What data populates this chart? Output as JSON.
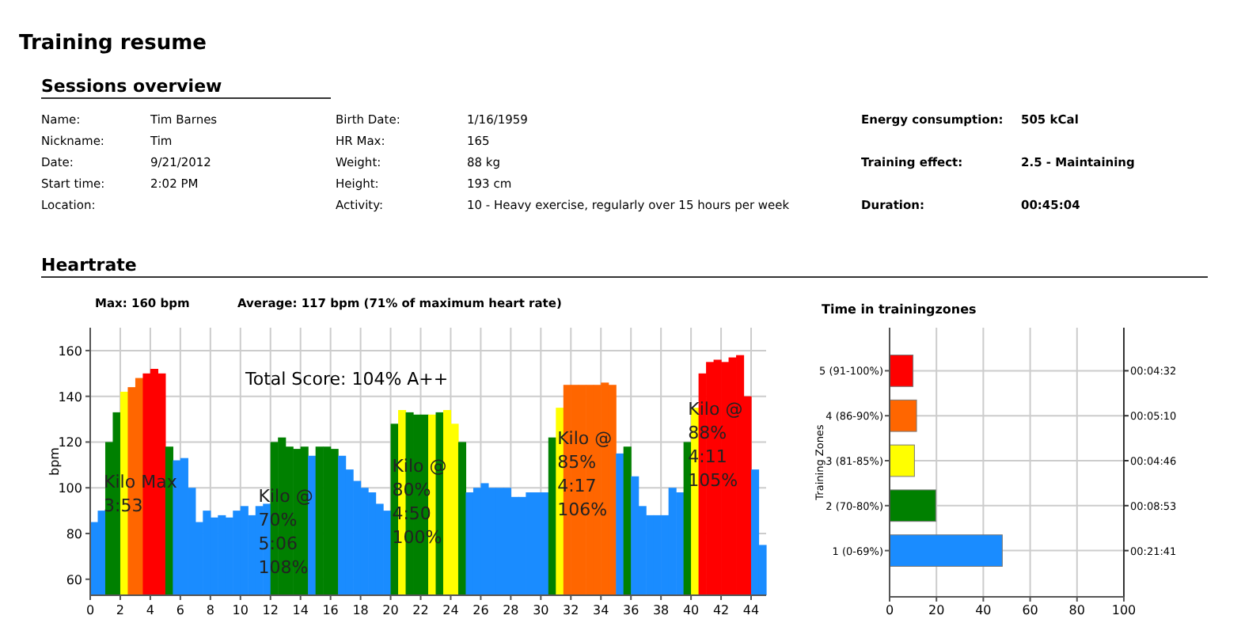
{
  "chart_data": [
    {
      "type": "other",
      "title": "Training resume",
      "subtitle": "Sessions overview",
      "annotations": [
        "Name:",
        "Tim Barnes",
        "Nickname:",
        "Tim",
        "Date:",
        "9/21/2012",
        "Start time:",
        "2:02 PM",
        "Location:",
        "Birth Date:",
        "1/16/1959",
        "HR Max:",
        "165",
        "Weight:",
        "88 kg",
        "Height:",
        "193 cm",
        "Activity:",
        "10 - Heavy exercise, regularly over 15 hours per week",
        "Energy consumption:",
        "505 kCal",
        "Training effect:",
        "2.5 - Maintaining",
        "Duration:",
        "00:45:04"
      ]
    },
    {
      "type": "bar",
      "title": "Heartrate",
      "ylabel": "bpm",
      "xlim": [
        0,
        45
      ],
      "ylim": [
        53,
        170
      ],
      "xticks": [
        0,
        2,
        4,
        6,
        8,
        10,
        12,
        14,
        16,
        18,
        20,
        22,
        24,
        26,
        28,
        30,
        32,
        34,
        36,
        38,
        40,
        42,
        44
      ],
      "yticks": [
        60,
        80,
        100,
        120,
        140,
        160
      ],
      "grid": true,
      "x": [
        0.25,
        0.75,
        1.25,
        1.75,
        2.25,
        2.75,
        3.25,
        3.75,
        4.25,
        4.75,
        5.25,
        5.75,
        6.25,
        6.75,
        7.25,
        7.75,
        8.25,
        8.75,
        9.25,
        9.75,
        10.25,
        10.75,
        11.25,
        11.75,
        12.25,
        12.75,
        13.25,
        13.75,
        14.25,
        14.75,
        15.25,
        15.75,
        16.25,
        16.75,
        17.25,
        17.75,
        18.25,
        18.75,
        19.25,
        19.75,
        20.25,
        20.75,
        21.25,
        21.75,
        22.25,
        22.75,
        23.25,
        23.75,
        24.25,
        24.75,
        25.25,
        25.75,
        26.25,
        26.75,
        27.25,
        27.75,
        28.25,
        28.75,
        29.25,
        29.75,
        30.25,
        30.75,
        31.25,
        31.75,
        32.25,
        32.75,
        33.25,
        33.75,
        34.25,
        34.75,
        35.25,
        35.75,
        36.25,
        36.75,
        37.25,
        37.75,
        38.25,
        38.75,
        39.25,
        39.75,
        40.25,
        40.75,
        41.25,
        41.75,
        42.25,
        42.75,
        43.25,
        43.75,
        44.25,
        44.75
      ],
      "values": [
        85,
        90,
        120,
        133,
        142,
        144,
        148,
        150,
        152,
        150,
        118,
        112,
        113,
        100,
        85,
        90,
        87,
        88,
        87,
        90,
        92,
        88,
        92,
        93,
        120,
        122,
        118,
        117,
        118,
        114,
        118,
        118,
        117,
        114,
        108,
        103,
        100,
        98,
        93,
        90,
        128,
        134,
        133,
        132,
        132,
        132,
        133,
        134,
        128,
        120,
        98,
        100,
        102,
        100,
        100,
        100,
        96,
        96,
        98,
        98,
        98,
        122,
        135,
        145,
        145,
        145,
        145,
        145,
        146,
        145,
        115,
        118,
        105,
        92,
        88,
        88,
        88,
        100,
        98,
        120,
        135,
        150,
        155,
        156,
        155,
        157,
        158,
        140,
        108,
        75
      ],
      "colors": [
        "#1a8cff",
        "#1a8cff",
        "#008000",
        "#008000",
        "#ffff00",
        "#ff6600",
        "#ff6600",
        "#ff0000",
        "#ff0000",
        "#ff0000",
        "#008000",
        "#1a8cff",
        "#1a8cff",
        "#1a8cff",
        "#1a8cff",
        "#1a8cff",
        "#1a8cff",
        "#1a8cff",
        "#1a8cff",
        "#1a8cff",
        "#1a8cff",
        "#1a8cff",
        "#1a8cff",
        "#1a8cff",
        "#008000",
        "#008000",
        "#008000",
        "#008000",
        "#008000",
        "#1a8cff",
        "#008000",
        "#008000",
        "#008000",
        "#1a8cff",
        "#1a8cff",
        "#1a8cff",
        "#1a8cff",
        "#1a8cff",
        "#1a8cff",
        "#1a8cff",
        "#008000",
        "#ffff00",
        "#008000",
        "#008000",
        "#008000",
        "#ffff00",
        "#008000",
        "#ffff00",
        "#ffff00",
        "#008000",
        "#1a8cff",
        "#1a8cff",
        "#1a8cff",
        "#1a8cff",
        "#1a8cff",
        "#1a8cff",
        "#1a8cff",
        "#1a8cff",
        "#1a8cff",
        "#1a8cff",
        "#1a8cff",
        "#008000",
        "#ffff00",
        "#ff6600",
        "#ff6600",
        "#ff6600",
        "#ff6600",
        "#ff6600",
        "#ff6600",
        "#ff6600",
        "#1a8cff",
        "#008000",
        "#1a8cff",
        "#1a8cff",
        "#1a8cff",
        "#1a8cff",
        "#1a8cff",
        "#1a8cff",
        "#1a8cff",
        "#008000",
        "#ffff00",
        "#ff0000",
        "#ff0000",
        "#ff0000",
        "#ff0000",
        "#ff0000",
        "#ff0000",
        "#ff0000",
        "#1a8cff",
        "#1a8cff"
      ],
      "annotations": [
        "Max: 160 bpm",
        "Average: 117 bpm (71% of maximum heart rate)",
        "Total Score: 104%  A++",
        {
          "text": "Kilo Max\n3:53",
          "x": 0.9,
          "y": 100
        },
        {
          "text": "Kilo @\n70%\n5:06\n108%",
          "x": 11.2,
          "y": 94
        },
        {
          "text": "Kilo @\n80%\n4:50\n100%",
          "x": 20.1,
          "y": 107
        },
        {
          "text": "Kilo @\n85%\n4:17\n106%",
          "x": 31.1,
          "y": 119
        },
        {
          "text": "Kilo @\n88%\n4:11\n105%",
          "x": 39.8,
          "y": 132
        }
      ]
    },
    {
      "type": "bar",
      "orientation": "horizontal",
      "title": "Time in trainingzones",
      "ylabel": "Training Zones",
      "categories": [
        "5 (91-100%)",
        "4 (86-90%)",
        "3 (81-85%)",
        "2 (70-80%)",
        "1 (0-69%)"
      ],
      "values": [
        10,
        11.5,
        10.6,
        19.7,
        48.1
      ],
      "colors": [
        "#ff0000",
        "#ff6600",
        "#ffff00",
        "#008000",
        "#1a8cff"
      ],
      "annotations": [
        "00:04:32",
        "00:05:10",
        "00:04:46",
        "00:08:53",
        "00:21:41"
      ],
      "xlim": [
        0,
        100
      ],
      "xticks": [
        0,
        20,
        40,
        60,
        80,
        100
      ],
      "grid": true
    }
  ]
}
